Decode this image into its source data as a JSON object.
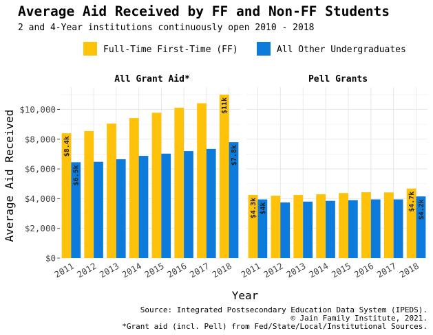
{
  "title": "Average Aid Received by FF and Non-FF Students",
  "subtitle": "2 and 4-Year institutions continuously open 2010 - 2018",
  "legend": [
    {
      "label": "Full-Time First-Time (FF)",
      "color": "#FFC20A"
    },
    {
      "label": "All Other Undergraduates",
      "color": "#0C7BDC"
    }
  ],
  "caption": [
    "Source: Integrated Postsecondary Education Data System (IPEDS).",
    "© Jain Family Institute, 2021.",
    "*Grant aid (incl. Pell) from Fed/State/Local/Institutional Sources."
  ],
  "chart_data": {
    "type": "bar",
    "xlabel": "Year",
    "ylabel": "Average Aid Received",
    "categories": [
      "2011",
      "2012",
      "2013",
      "2014",
      "2015",
      "2016",
      "2017",
      "2018"
    ],
    "ylim": [
      0,
      11500
    ],
    "yticks": [
      0,
      2000,
      4000,
      6000,
      8000,
      10000
    ],
    "ytick_labels": [
      "$0",
      "$2,000",
      "$4,000",
      "$6,000",
      "$8,000",
      "$10,000"
    ],
    "grid": true,
    "legend_position": "top",
    "panels": [
      {
        "title": "All Grant Aid*",
        "series": [
          {
            "values": [
              8400,
              8550,
              9050,
              9420,
              9780,
              10120,
              10420,
              11000
            ],
            "labels": [
              "$8.4k",
              "",
              "",
              "",
              "",
              "",
              "",
              "$11k"
            ]
          },
          {
            "values": [
              6450,
              6480,
              6650,
              6880,
              7030,
              7200,
              7350,
              7800
            ],
            "labels": [
              "$6.5k",
              "",
              "",
              "",
              "",
              "",
              "",
              "$7.8k"
            ]
          }
        ]
      },
      {
        "title": "Pell Grants",
        "series": [
          {
            "values": [
              4250,
              4200,
              4250,
              4300,
              4380,
              4430,
              4420,
              4680
            ],
            "labels": [
              "$4.3k",
              "",
              "",
              "",
              "",
              "",
              "",
              "$4.7k"
            ]
          },
          {
            "values": [
              3950,
              3750,
              3800,
              3850,
              3900,
              3950,
              3950,
              4150
            ],
            "labels": [
              "$4k",
              "",
              "",
              "",
              "",
              "",
              "",
              "$4.2k"
            ]
          }
        ]
      }
    ]
  }
}
